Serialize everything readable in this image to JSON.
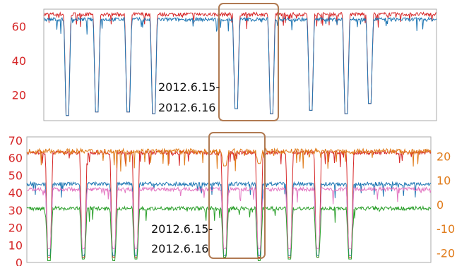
{
  "chart_data": [
    {
      "type": "line",
      "title": "",
      "xlabel": "",
      "ylabel": "",
      "ylim": [
        5,
        70
      ],
      "y_ticks": [
        "20",
        "40",
        "60"
      ],
      "grid": false,
      "highlight_box": true,
      "annotation": {
        "line1": "2012.6.15-",
        "line2": "2012.6.16"
      },
      "colors": {
        "axis_ticks": "#d62728",
        "box": "#b07a52"
      },
      "series": [
        {
          "color": "#d62728",
          "baseline": 67,
          "dips": [
            {
              "x": 0.06,
              "min": 8
            },
            {
              "x": 0.135,
              "min": 10
            },
            {
              "x": 0.215,
              "min": 10
            },
            {
              "x": 0.28,
              "min": 9
            },
            {
              "x": 0.49,
              "min": 12
            },
            {
              "x": 0.58,
              "min": 9
            },
            {
              "x": 0.68,
              "min": 11
            },
            {
              "x": 0.77,
              "min": 9
            },
            {
              "x": 0.83,
              "min": 15
            }
          ]
        },
        {
          "color": "#1f77b4",
          "baseline": 64,
          "dips": [
            {
              "x": 0.06,
              "min": 8
            },
            {
              "x": 0.135,
              "min": 10
            },
            {
              "x": 0.215,
              "min": 10
            },
            {
              "x": 0.28,
              "min": 9
            },
            {
              "x": 0.49,
              "min": 12
            },
            {
              "x": 0.58,
              "min": 9
            },
            {
              "x": 0.68,
              "min": 11
            },
            {
              "x": 0.77,
              "min": 9
            },
            {
              "x": 0.83,
              "min": 15
            }
          ]
        }
      ]
    },
    {
      "type": "line",
      "title": "",
      "xlabel": "",
      "ylabel": "",
      "ylim": [
        0,
        72
      ],
      "y_ticks": [
        "0",
        "10",
        "20",
        "30",
        "40",
        "50",
        "60",
        "70"
      ],
      "y2_ticks": [
        "-20",
        "-10",
        "0",
        "10",
        "20"
      ],
      "y2lim": [
        -24,
        28
      ],
      "grid": false,
      "highlight_box": true,
      "annotation": {
        "line1": "2012.6.15-",
        "line2": "2012.6.16"
      },
      "colors": {
        "axis_ticks": "#d62728",
        "axis2_ticks": "#e07b1a",
        "box": "#b07a52"
      },
      "series": [
        {
          "color": "#d62728",
          "baseline": 63,
          "dips": [
            {
              "x": 0.055,
              "min": 3
            },
            {
              "x": 0.14,
              "min": 3
            },
            {
              "x": 0.215,
              "min": 3
            },
            {
              "x": 0.27,
              "min": 3
            },
            {
              "x": 0.49,
              "min": 3
            },
            {
              "x": 0.575,
              "min": 3
            },
            {
              "x": 0.65,
              "min": 3
            },
            {
              "x": 0.72,
              "min": 3
            },
            {
              "x": 0.8,
              "min": 3
            }
          ]
        },
        {
          "color": "#e07b1a",
          "axis": "right",
          "baseline": 22,
          "dips": [
            {
              "x": 0.49,
              "min": 16
            },
            {
              "x": 0.575,
              "min": 17
            }
          ]
        },
        {
          "color": "#1f77b4",
          "baseline": 45,
          "dips": [
            {
              "x": 0.055,
              "min": 4
            },
            {
              "x": 0.14,
              "min": 4
            },
            {
              "x": 0.215,
              "min": 4
            },
            {
              "x": 0.27,
              "min": 4
            },
            {
              "x": 0.49,
              "min": 4
            },
            {
              "x": 0.575,
              "min": 4
            },
            {
              "x": 0.65,
              "min": 4
            },
            {
              "x": 0.72,
              "min": 4
            },
            {
              "x": 0.8,
              "min": 4
            }
          ]
        },
        {
          "color": "#e377c2",
          "baseline": 42,
          "dips": [
            {
              "x": 0.055,
              "min": 8
            },
            {
              "x": 0.14,
              "min": 8
            },
            {
              "x": 0.215,
              "min": 8
            },
            {
              "x": 0.27,
              "min": 8
            },
            {
              "x": 0.49,
              "min": 8
            },
            {
              "x": 0.575,
              "min": 8
            },
            {
              "x": 0.65,
              "min": 8
            },
            {
              "x": 0.72,
              "min": 8
            },
            {
              "x": 0.8,
              "min": 8
            }
          ]
        },
        {
          "color": "#2ca02c",
          "baseline": 31,
          "dips": [
            {
              "x": 0.055,
              "min": 1
            },
            {
              "x": 0.14,
              "min": 2
            },
            {
              "x": 0.215,
              "min": 1
            },
            {
              "x": 0.27,
              "min": 2
            },
            {
              "x": 0.49,
              "min": 3
            },
            {
              "x": 0.575,
              "min": 1
            },
            {
              "x": 0.65,
              "min": 2
            },
            {
              "x": 0.72,
              "min": 3
            },
            {
              "x": 0.8,
              "min": 2
            }
          ]
        }
      ]
    }
  ]
}
